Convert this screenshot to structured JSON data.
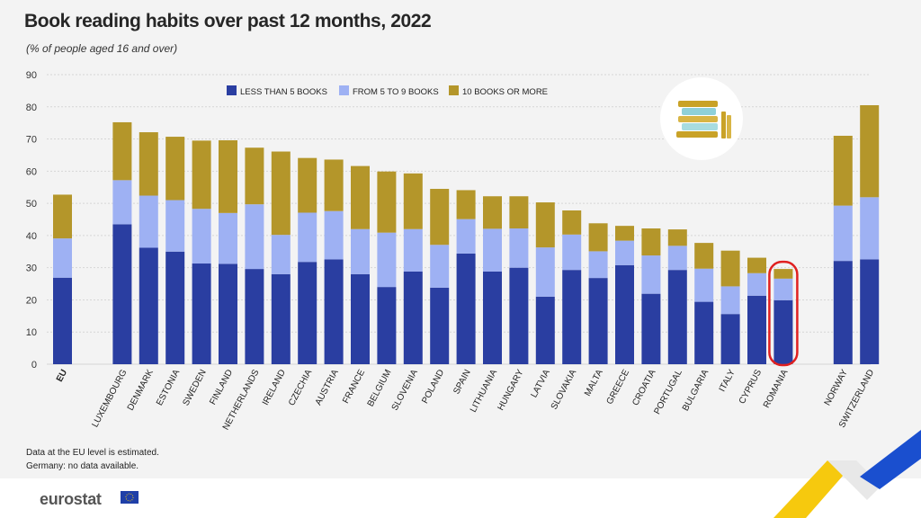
{
  "title": "Book reading habits over past 12 months, 2022",
  "subtitle": "(% of people aged 16 and over)",
  "notes": [
    "Data at the EU level is estimated.",
    "Germany: no data available."
  ],
  "logo_text": "eurostat",
  "colors": {
    "less_than_5": "#2a3ea1",
    "from_5_to_9": "#9eb1f3",
    "ten_or_more": "#b4962a",
    "highlight": "#e02020",
    "grid": "#d6d6d6",
    "accent_yellow": "#f6c90e",
    "accent_blue": "#1a4fcf"
  },
  "icons": [
    "book-stack-icon",
    "eu-flag-icon"
  ],
  "chart_data": {
    "type": "bar",
    "stacked": true,
    "categories": [
      "EU",
      "LUXEMBOURG",
      "DENMARK",
      "ESTONIA",
      "SWEDEN",
      "FINLAND",
      "NETHERLANDS",
      "IRELAND",
      "CZECHIA",
      "AUSTRIA",
      "FRANCE",
      "BELGIUM",
      "SLOVENIA",
      "POLAND",
      "SPAIN",
      "LITHUANIA",
      "HUNGARY",
      "LATVIA",
      "SLOVAKIA",
      "MALTA",
      "GREECE",
      "CROATIA",
      "PORTUGAL",
      "BULGARIA",
      "ITALY",
      "CYPRUS",
      "ROMANIA",
      "NORWAY",
      "SWITZERLAND"
    ],
    "groups": [
      0,
      1,
      1,
      1,
      1,
      1,
      1,
      1,
      1,
      1,
      1,
      1,
      1,
      1,
      1,
      1,
      1,
      1,
      1,
      1,
      1,
      1,
      1,
      1,
      1,
      1,
      1,
      2,
      2
    ],
    "highlighted": "ROMANIA",
    "series": [
      {
        "name": "LESS THAN 5 BOOKS",
        "values": [
          26.9,
          43.5,
          36.2,
          35.0,
          31.3,
          31.2,
          29.6,
          28.0,
          31.8,
          32.6,
          28.0,
          24.0,
          28.8,
          23.8,
          34.4,
          28.8,
          30.0,
          21.0,
          29.3,
          26.8,
          30.8,
          21.9,
          29.3,
          19.4,
          15.6,
          21.3,
          19.9,
          32.1,
          32.6
        ]
      },
      {
        "name": "FROM 5 TO 9 BOOKS",
        "values": [
          12.2,
          13.7,
          16.2,
          16.0,
          17.0,
          15.8,
          20.1,
          12.2,
          15.3,
          15.0,
          14.0,
          16.9,
          13.2,
          13.3,
          10.7,
          13.3,
          12.2,
          15.3,
          11.0,
          8.3,
          7.6,
          11.9,
          7.5,
          10.3,
          8.6,
          7.0,
          6.7,
          17.2,
          19.3
        ]
      },
      {
        "name": "10 BOOKS OR MORE",
        "values": [
          13.6,
          18.0,
          19.7,
          19.7,
          21.2,
          22.6,
          17.6,
          25.9,
          17.0,
          16.0,
          19.6,
          19.0,
          17.3,
          17.4,
          9.0,
          10.1,
          10.0,
          14.0,
          7.5,
          8.7,
          4.6,
          8.4,
          5.1,
          8.0,
          11.1,
          4.8,
          3.0,
          21.7,
          28.6
        ]
      }
    ],
    "ylim": [
      0,
      90
    ],
    "yticks": [
      0,
      10,
      20,
      30,
      40,
      50,
      60,
      70,
      80,
      90
    ],
    "grid": true,
    "legend_position": "top-center"
  }
}
